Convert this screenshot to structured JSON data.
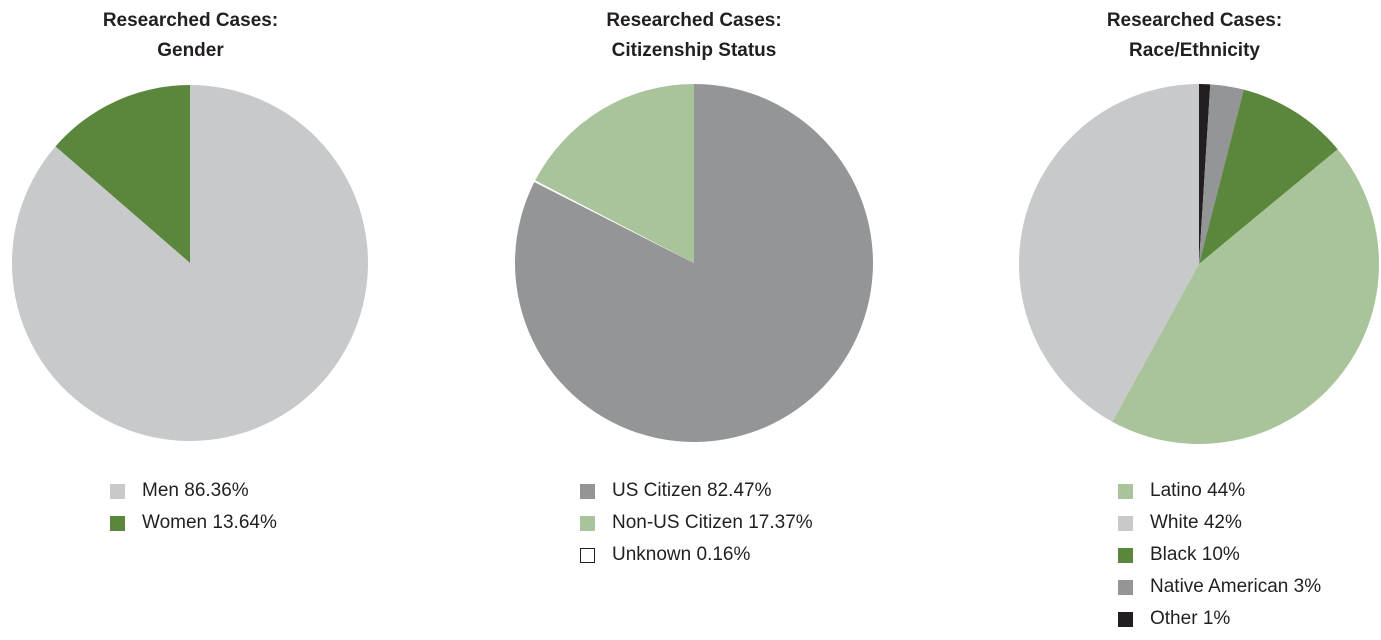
{
  "chart_data": [
    {
      "type": "pie",
      "title": "Researched Cases:",
      "subtitle": "Gender",
      "slices": [
        {
          "label": "Men",
          "value": 86.36,
          "value_text": "86.36%",
          "color": "#c8c9ca"
        },
        {
          "label": "Women",
          "value": 13.64,
          "value_text": "13.64%",
          "color": "#5a873c"
        }
      ]
    },
    {
      "type": "pie",
      "title": "Researched Cases:",
      "subtitle": "Citizenship Status",
      "slices": [
        {
          "label": "US Citizen",
          "value": 82.47,
          "value_text": "82.47%",
          "color": "#949596"
        },
        {
          "label": "Non-US Citizen",
          "value": 17.37,
          "value_text": "17.37%",
          "color": "#a9c39a"
        },
        {
          "label": "Unknown",
          "value": 0.16,
          "value_text": "0.16%",
          "color": "#ffffff"
        }
      ]
    },
    {
      "type": "pie",
      "title": "Researched Cases:",
      "subtitle": "Race/Ethnicity",
      "slices": [
        {
          "label": "Latino",
          "value": 44,
          "value_text": "44%",
          "color": "#a9c39a"
        },
        {
          "label": "White",
          "value": 42,
          "value_text": "42%",
          "color": "#c8c9ca"
        },
        {
          "label": "Black",
          "value": 10,
          "value_text": "10%",
          "color": "#5a873c"
        },
        {
          "label": "Native American",
          "value": 3,
          "value_text": "3%",
          "color": "#949596"
        },
        {
          "label": "Other",
          "value": 1,
          "value_text": "1%",
          "color": "#231f20"
        }
      ]
    }
  ]
}
